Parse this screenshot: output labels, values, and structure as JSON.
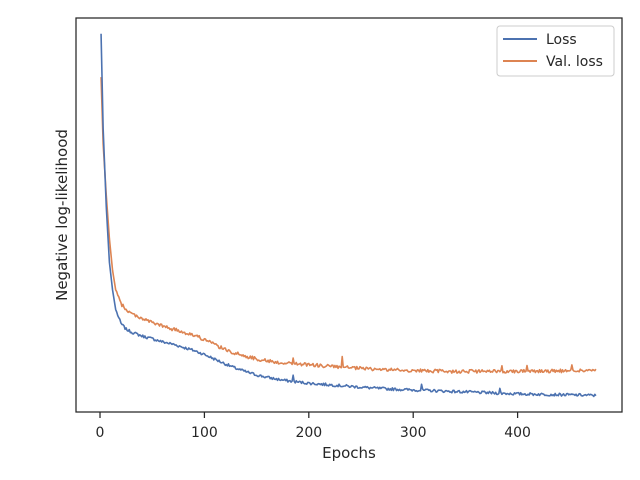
{
  "chart_data": {
    "type": "line",
    "title": "",
    "xlabel": "Epochs",
    "ylabel": "Negative log-likelihood",
    "xlim": [
      -23,
      500
    ],
    "ylim": [
      0,
      100
    ],
    "x_ticks": [
      0,
      100,
      200,
      300,
      400
    ],
    "y_ticks_labeled": false,
    "grid": false,
    "legend_position": "top-right",
    "series": [
      {
        "name": "Loss",
        "color": "#4c72b0",
        "points": [
          [
            1,
            96
          ],
          [
            3,
            72
          ],
          [
            6,
            52
          ],
          [
            9,
            38
          ],
          [
            12,
            31
          ],
          [
            15,
            26
          ],
          [
            20,
            22.5
          ],
          [
            25,
            21
          ],
          [
            30,
            20.3
          ],
          [
            40,
            19.3
          ],
          [
            50,
            18.6
          ],
          [
            60,
            17.8
          ],
          [
            70,
            17.2
          ],
          [
            80,
            16.4
          ],
          [
            90,
            15.6
          ],
          [
            100,
            14.6
          ],
          [
            110,
            13.4
          ],
          [
            120,
            12.2
          ],
          [
            130,
            11.1
          ],
          [
            140,
            10.2
          ],
          [
            150,
            9.4
          ],
          [
            160,
            8.8
          ],
          [
            170,
            8.3
          ],
          [
            180,
            7.9
          ],
          [
            190,
            7.6
          ],
          [
            200,
            7.3
          ],
          [
            220,
            6.9
          ],
          [
            240,
            6.5
          ],
          [
            260,
            6.1
          ],
          [
            280,
            5.8
          ],
          [
            300,
            5.6
          ],
          [
            320,
            5.4
          ],
          [
            340,
            5.2
          ],
          [
            360,
            5.0
          ],
          [
            380,
            4.8
          ],
          [
            400,
            4.6
          ],
          [
            420,
            4.5
          ],
          [
            440,
            4.4
          ],
          [
            460,
            4.3
          ],
          [
            475,
            4.2
          ]
        ],
        "noise": 0.35,
        "spikes": [
          [
            185,
            1.4
          ],
          [
            308,
            1.5
          ],
          [
            383,
            1.1
          ]
        ]
      },
      {
        "name": "Val. loss",
        "color": "#dd8452",
        "points": [
          [
            1,
            85
          ],
          [
            3,
            68
          ],
          [
            6,
            55
          ],
          [
            9,
            44
          ],
          [
            12,
            36
          ],
          [
            15,
            31
          ],
          [
            20,
            27.5
          ],
          [
            25,
            26
          ],
          [
            30,
            25
          ],
          [
            40,
            23.8
          ],
          [
            50,
            22.7
          ],
          [
            60,
            21.8
          ],
          [
            70,
            21
          ],
          [
            80,
            20.3
          ],
          [
            90,
            19.5
          ],
          [
            100,
            18.4
          ],
          [
            110,
            17.1
          ],
          [
            120,
            15.8
          ],
          [
            130,
            14.9
          ],
          [
            140,
            14.1
          ],
          [
            150,
            13.5
          ],
          [
            160,
            13.0
          ],
          [
            170,
            12.6
          ],
          [
            180,
            12.4
          ],
          [
            190,
            12.2
          ],
          [
            200,
            12.0
          ],
          [
            220,
            11.6
          ],
          [
            240,
            11.2
          ],
          [
            260,
            10.9
          ],
          [
            280,
            10.7
          ],
          [
            300,
            10.5
          ],
          [
            320,
            10.4
          ],
          [
            340,
            10.3
          ],
          [
            360,
            10.3
          ],
          [
            380,
            10.3
          ],
          [
            400,
            10.4
          ],
          [
            420,
            10.4
          ],
          [
            440,
            10.4
          ],
          [
            460,
            10.5
          ],
          [
            475,
            10.6
          ]
        ],
        "noise": 0.45,
        "spikes": [
          [
            185,
            1.5
          ],
          [
            232,
            2.3
          ],
          [
            385,
            1.5
          ],
          [
            409,
            1.8
          ],
          [
            452,
            1.4
          ]
        ]
      }
    ]
  }
}
